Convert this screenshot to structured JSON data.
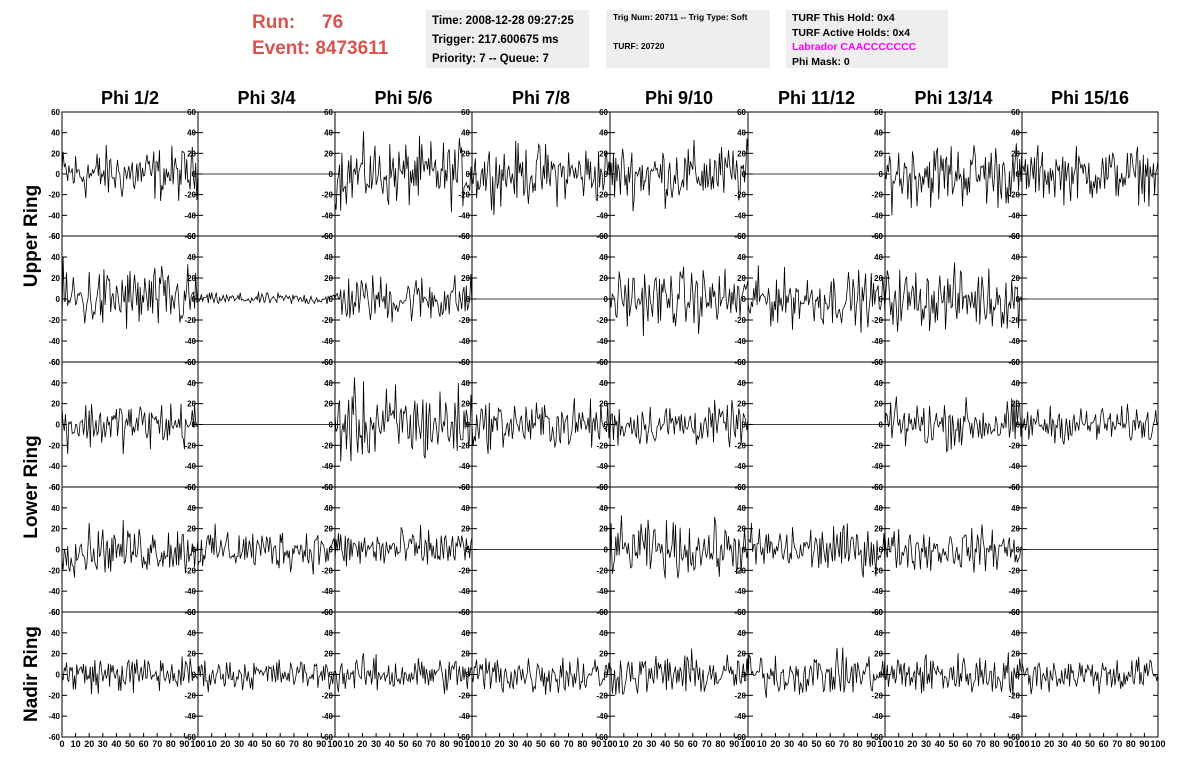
{
  "header": {
    "run_label": "Run:",
    "run_value": "76",
    "event_label": "Event:",
    "event_value": "8473611",
    "time": "Time: 2008-12-28 09:27:25",
    "trigger": "Trigger: 217.600675 ms",
    "priority": "Priority: 7 -- Queue: 7",
    "trig_num": "Trig Num: 20711 -- Trig Type: Soft",
    "turf": "TURF: 20720",
    "turf_this_hold": "TURF This Hold: 0x4",
    "turf_active_holds": "TURF Active Holds: 0x4",
    "labrador": "Labrador CAACCCCCCC",
    "phi_mask": "Phi Mask: 0"
  },
  "colors": {
    "run_text": "#d9534f",
    "labrador_text": "#ff00ff",
    "info_bg": "#eeeeee",
    "trace": "#000000"
  },
  "chart_data": {
    "type": "line",
    "columns": [
      "Phi 1/2",
      "Phi 3/4",
      "Phi 5/6",
      "Phi 7/8",
      "Phi 9/10",
      "Phi 11/12",
      "Phi 13/14",
      "Phi 15/16"
    ],
    "row_labels": [
      "Upper Ring",
      "Lower Ring",
      "Nadir Ring"
    ],
    "ylim": [
      -60,
      60
    ],
    "xlim": [
      0,
      100
    ],
    "yticks": [
      -60,
      -40,
      -20,
      0,
      20,
      40,
      60
    ],
    "xticks": [
      0,
      10,
      20,
      30,
      40,
      50,
      60,
      70,
      80,
      90,
      100
    ],
    "grid": false,
    "panels": [
      [
        18,
        0,
        22,
        20,
        20,
        0,
        22,
        18
      ],
      [
        22,
        4,
        16,
        0,
        20,
        18,
        20,
        0
      ],
      [
        16,
        0,
        26,
        16,
        14,
        0,
        16,
        12
      ],
      [
        16,
        14,
        14,
        0,
        18,
        16,
        14,
        0
      ],
      [
        12,
        10,
        12,
        14,
        14,
        14,
        14,
        12
      ]
    ]
  }
}
